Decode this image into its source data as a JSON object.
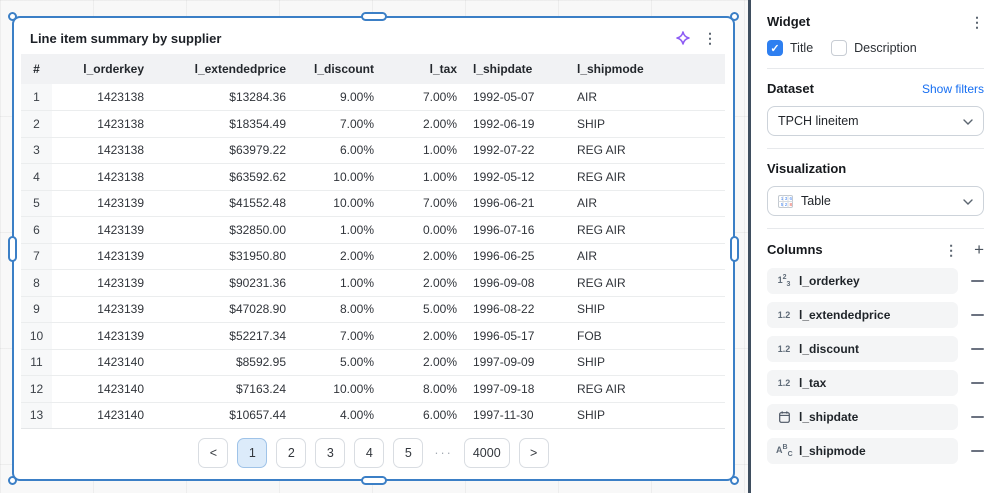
{
  "widget": {
    "title": "Line item summary by supplier",
    "table": {
      "columns": [
        "#",
        "l_orderkey",
        "l_extendedprice",
        "l_discount",
        "l_tax",
        "l_shipdate",
        "l_shipmode"
      ],
      "rows": [
        [
          "1",
          "1423138",
          "$13284.36",
          "9.00%",
          "7.00%",
          "1992-05-07",
          "AIR"
        ],
        [
          "2",
          "1423138",
          "$18354.49",
          "7.00%",
          "2.00%",
          "1992-06-19",
          "SHIP"
        ],
        [
          "3",
          "1423138",
          "$63979.22",
          "6.00%",
          "1.00%",
          "1992-07-22",
          "REG AIR"
        ],
        [
          "4",
          "1423138",
          "$63592.62",
          "10.00%",
          "1.00%",
          "1992-05-12",
          "REG AIR"
        ],
        [
          "5",
          "1423139",
          "$41552.48",
          "10.00%",
          "7.00%",
          "1996-06-21",
          "AIR"
        ],
        [
          "6",
          "1423139",
          "$32850.00",
          "1.00%",
          "0.00%",
          "1996-07-16",
          "REG AIR"
        ],
        [
          "7",
          "1423139",
          "$31950.80",
          "2.00%",
          "2.00%",
          "1996-06-25",
          "AIR"
        ],
        [
          "8",
          "1423139",
          "$90231.36",
          "1.00%",
          "2.00%",
          "1996-09-08",
          "REG AIR"
        ],
        [
          "9",
          "1423139",
          "$47028.90",
          "8.00%",
          "5.00%",
          "1996-08-22",
          "SHIP"
        ],
        [
          "10",
          "1423139",
          "$52217.34",
          "7.00%",
          "2.00%",
          "1996-05-17",
          "FOB"
        ],
        [
          "11",
          "1423140",
          "$8592.95",
          "5.00%",
          "2.00%",
          "1997-09-09",
          "SHIP"
        ],
        [
          "12",
          "1423140",
          "$7163.24",
          "10.00%",
          "8.00%",
          "1997-09-18",
          "REG AIR"
        ],
        [
          "13",
          "1423140",
          "$10657.44",
          "4.00%",
          "6.00%",
          "1997-11-30",
          "SHIP"
        ]
      ]
    },
    "pagination": {
      "prev": "<",
      "next": ">",
      "pages": [
        {
          "label": "1",
          "active": true
        },
        {
          "label": "2"
        },
        {
          "label": "3"
        },
        {
          "label": "4"
        },
        {
          "label": "5"
        },
        {
          "label": "···",
          "ellipsis": true
        },
        {
          "label": "4000"
        }
      ]
    },
    "header_icons": [
      "sparkle-icon",
      "kebab-menu-icon"
    ]
  },
  "panel": {
    "widget_section": {
      "title": "Widget",
      "title_checkbox": {
        "label": "Title",
        "checked": true
      },
      "description_checkbox": {
        "label": "Description",
        "checked": false
      },
      "check_glyph": "✓"
    },
    "dataset_section": {
      "title": "Dataset",
      "link": "Show filters",
      "selected": "TPCH lineitem"
    },
    "visualization_section": {
      "title": "Visualization",
      "selected": "Table",
      "selected_icon": "table-grid-icon"
    },
    "columns_section": {
      "title": "Columns",
      "items": [
        {
          "label": "l_orderkey",
          "type": "integer",
          "icon": "integer-123-icon"
        },
        {
          "label": "l_extendedprice",
          "type": "decimal",
          "icon": "decimal-12-icon"
        },
        {
          "label": "l_discount",
          "type": "decimal",
          "icon": "decimal-12-icon"
        },
        {
          "label": "l_tax",
          "type": "decimal",
          "icon": "decimal-12-icon"
        },
        {
          "label": "l_shipdate",
          "type": "date",
          "icon": "calendar-icon"
        },
        {
          "label": "l_shipmode",
          "type": "text",
          "icon": "text-abc-icon"
        }
      ],
      "decimal_icon_text": "1.2"
    }
  },
  "colors": {
    "selection_blue": "#3b7fc6",
    "active_page_bg": "#dcebfa",
    "link_blue": "#176ff2",
    "checkbox_blue": "#2e7ff0",
    "panel_divider_dark": "#3f4e5f"
  }
}
